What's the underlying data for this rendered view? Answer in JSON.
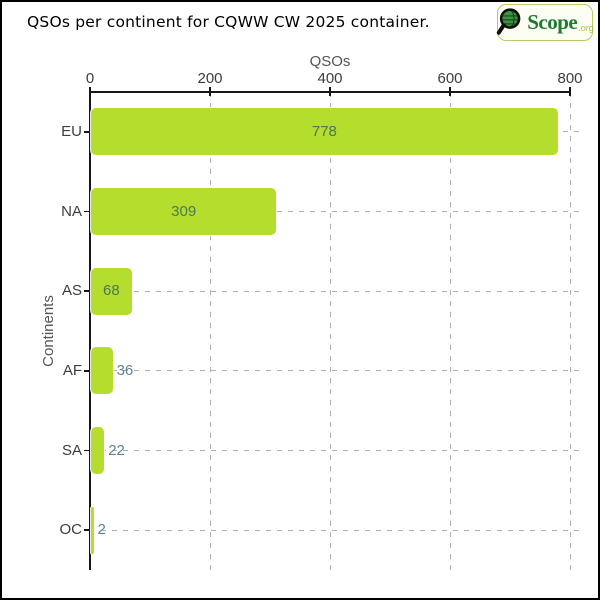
{
  "title": "QSOs per continent for CQWW CW 2025 container.",
  "logo": {
    "name": "Scope",
    "suffix": ".org",
    "icon": "magnifier-globe"
  },
  "chart_data": {
    "type": "bar",
    "orientation": "horizontal",
    "title": "QSOs per continent for CQWW CW 2025 container.",
    "xlabel": "QSOs",
    "ylabel": "Continents",
    "categories": [
      "EU",
      "NA",
      "AS",
      "AF",
      "SA",
      "OC"
    ],
    "values": [
      778,
      309,
      68,
      36,
      22,
      2
    ],
    "xlim": [
      0,
      800
    ],
    "xticks": [
      0,
      200,
      400,
      600,
      800
    ],
    "grid": "dashed",
    "legend": "none",
    "colors": {
      "bar": "#b4dd2d",
      "value_inside": "#4a7a50",
      "value_outside": "#5d8494",
      "grid": "#b0b0b0",
      "axis": "#161616",
      "tick_label": "#3d3d3d",
      "axis_title": "#545454",
      "title": "#000000",
      "logo_text": "#1d7a30",
      "logo_border": "#b7cc66"
    }
  }
}
